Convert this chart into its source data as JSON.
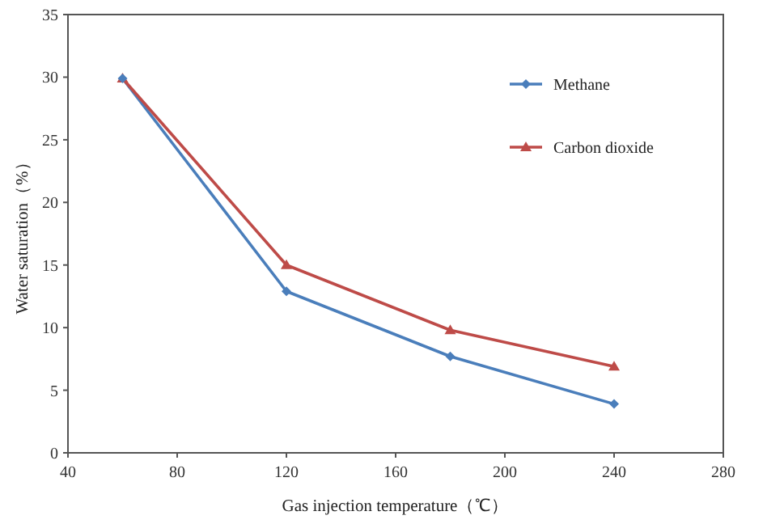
{
  "chart_data": {
    "type": "line",
    "xlabel": "Gas injection temperature（℃）",
    "ylabel": "Water saturation（%）",
    "x": [
      60,
      120,
      180,
      240
    ],
    "series": [
      {
        "name": "Methane",
        "color": "#4a7ebb",
        "marker": "diamond",
        "values": [
          29.9,
          12.9,
          7.7,
          3.9
        ]
      },
      {
        "name": "Carbon dioxide",
        "color": "#be4b48",
        "marker": "triangle",
        "values": [
          29.9,
          15.0,
          9.8,
          6.9
        ]
      }
    ],
    "xlim": [
      40,
      280
    ],
    "xticks": [
      40,
      80,
      120,
      160,
      200,
      240,
      280
    ],
    "ylim": [
      0,
      35
    ],
    "yticks": [
      0,
      5,
      10,
      15,
      20,
      25,
      30,
      35
    ],
    "grid": false,
    "legend": "top right"
  }
}
